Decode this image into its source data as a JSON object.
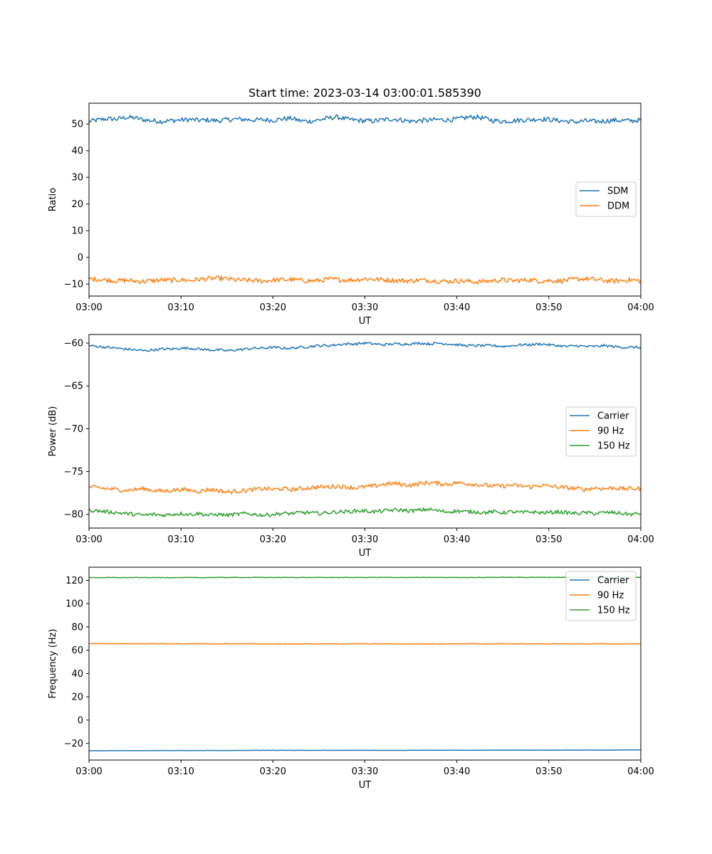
{
  "title": "Start time: 2023-03-14 03:00:01.585390",
  "chart_data": [
    {
      "type": "line",
      "title": "Start time: 2023-03-14 03:00:01.585390",
      "xlabel": "UT",
      "ylabel": "Ratio",
      "x_tick_labels": [
        "03:00",
        "03:10",
        "03:20",
        "03:30",
        "03:40",
        "03:50",
        "04:00"
      ],
      "xlim_minutes": [
        0,
        60
      ],
      "yticks": [
        50,
        40,
        30,
        20,
        10,
        0,
        -10
      ],
      "y_tick_labels": [
        "50",
        "40",
        "30",
        "20",
        "10",
        "0",
        "−10"
      ],
      "ylim": [
        -14.5,
        57.8
      ],
      "legend_position": "center-right",
      "series": [
        {
          "name": "SDM",
          "color": "#1f77b4",
          "mean": 51.5,
          "noise": 0.9,
          "values": [
            51.0,
            51.5,
            52.0,
            51.8,
            52.5,
            52.3,
            51.5,
            51.2,
            51.0,
            51.3,
            51.5,
            51.7,
            51.4,
            51.5,
            51.2,
            51.6,
            51.8,
            51.7,
            51.5,
            51.6,
            51.4,
            51.9,
            52.1,
            51.2,
            51.0,
            51.5,
            52.2,
            52.6,
            51.8,
            51.4,
            51.2,
            51.1,
            51.6,
            51.9,
            51.5,
            51.0,
            51.3,
            51.4,
            51.7,
            51.5,
            51.8,
            52.4,
            52.7,
            52.1,
            51.3,
            51.0,
            51.2,
            51.5,
            51.6,
            51.9,
            51.7,
            51.3,
            51.0,
            50.8,
            51.2,
            50.9,
            51.1,
            51.4,
            51.3,
            51.2,
            51.5
          ]
        },
        {
          "name": "DDM",
          "color": "#ff7f0e",
          "mean": -8.5,
          "noise": 0.9,
          "values": [
            -8.0,
            -8.2,
            -8.5,
            -8.8,
            -8.6,
            -8.9,
            -9.0,
            -8.7,
            -8.5,
            -8.6,
            -8.4,
            -8.7,
            -8.2,
            -8.0,
            -7.8,
            -8.1,
            -8.5,
            -8.6,
            -8.7,
            -8.9,
            -8.5,
            -8.4,
            -8.3,
            -8.6,
            -8.8,
            -8.7,
            -8.2,
            -8.3,
            -8.5,
            -8.4,
            -8.0,
            -8.2,
            -8.4,
            -8.6,
            -8.7,
            -8.8,
            -8.5,
            -8.6,
            -8.9,
            -9.0,
            -8.8,
            -8.9,
            -9.2,
            -9.0,
            -8.7,
            -8.5,
            -8.8,
            -8.6,
            -8.4,
            -8.9,
            -8.7,
            -8.8,
            -8.6,
            -8.2,
            -8.0,
            -8.3,
            -8.7,
            -8.9,
            -8.6,
            -8.5,
            -8.8
          ]
        }
      ]
    },
    {
      "type": "line",
      "title": "",
      "xlabel": "UT",
      "ylabel": "Power (dB)",
      "x_tick_labels": [
        "03:00",
        "03:10",
        "03:20",
        "03:30",
        "03:40",
        "03:50",
        "04:00"
      ],
      "xlim_minutes": [
        0,
        60
      ],
      "yticks": [
        -60,
        -65,
        -70,
        -75,
        -80
      ],
      "y_tick_labels": [
        "−60",
        "−65",
        "−70",
        "−75",
        "−80"
      ],
      "ylim": [
        -81.6,
        -59.0
      ],
      "legend_position": "center-right",
      "series": [
        {
          "name": "Carrier",
          "color": "#1f77b4",
          "mean": -60.4,
          "noise": 0.15,
          "values": [
            -60.3,
            -60.4,
            -60.5,
            -60.6,
            -60.7,
            -60.8,
            -60.9,
            -60.8,
            -60.7,
            -60.7,
            -60.6,
            -60.6,
            -60.7,
            -60.8,
            -60.8,
            -60.9,
            -60.8,
            -60.7,
            -60.6,
            -60.6,
            -60.5,
            -60.6,
            -60.6,
            -60.5,
            -60.4,
            -60.3,
            -60.3,
            -60.2,
            -60.1,
            -60.1,
            -60.0,
            -60.1,
            -60.2,
            -60.1,
            -60.1,
            -60.1,
            -60.0,
            -60.1,
            -60.0,
            -60.1,
            -60.2,
            -60.3,
            -60.3,
            -60.3,
            -60.3,
            -60.4,
            -60.3,
            -60.2,
            -60.2,
            -60.1,
            -60.2,
            -60.3,
            -60.4,
            -60.3,
            -60.4,
            -60.4,
            -60.3,
            -60.4,
            -60.5,
            -60.5,
            -60.5
          ]
        },
        {
          "name": "90 Hz",
          "color": "#ff7f0e",
          "mean": -76.9,
          "noise": 0.25,
          "values": [
            -76.8,
            -76.9,
            -77.0,
            -77.1,
            -77.2,
            -77.1,
            -77.0,
            -77.2,
            -77.3,
            -77.2,
            -77.1,
            -77.2,
            -77.3,
            -77.1,
            -77.2,
            -77.4,
            -77.3,
            -77.2,
            -77.1,
            -77.0,
            -77.1,
            -77.0,
            -77.1,
            -77.0,
            -76.9,
            -76.8,
            -76.8,
            -76.7,
            -76.8,
            -76.9,
            -76.8,
            -76.7,
            -76.5,
            -76.4,
            -76.5,
            -76.6,
            -76.4,
            -76.3,
            -76.4,
            -76.5,
            -76.3,
            -76.4,
            -76.5,
            -76.6,
            -76.7,
            -76.7,
            -76.6,
            -76.7,
            -76.8,
            -76.6,
            -76.7,
            -76.8,
            -76.9,
            -77.0,
            -77.1,
            -76.9,
            -77.0,
            -76.9,
            -77.0,
            -77.0,
            -77.0
          ]
        },
        {
          "name": "150 Hz",
          "color": "#2ca02c",
          "mean": -79.8,
          "noise": 0.22,
          "values": [
            -79.5,
            -79.6,
            -79.7,
            -79.8,
            -79.9,
            -80.0,
            -80.1,
            -80.0,
            -80.1,
            -80.0,
            -79.9,
            -80.0,
            -79.9,
            -80.1,
            -80.0,
            -80.1,
            -80.0,
            -79.9,
            -80.0,
            -80.1,
            -80.0,
            -79.9,
            -79.9,
            -79.8,
            -79.8,
            -79.9,
            -79.8,
            -79.7,
            -79.7,
            -79.6,
            -79.6,
            -79.7,
            -79.6,
            -79.5,
            -79.5,
            -79.6,
            -79.5,
            -79.4,
            -79.6,
            -79.7,
            -79.6,
            -79.7,
            -79.7,
            -79.8,
            -79.7,
            -79.8,
            -79.7,
            -79.8,
            -79.7,
            -79.8,
            -79.8,
            -79.7,
            -79.8,
            -79.9,
            -79.8,
            -79.9,
            -79.8,
            -79.8,
            -79.9,
            -80.0,
            -79.9
          ]
        }
      ]
    },
    {
      "type": "line",
      "title": "",
      "xlabel": "UT",
      "ylabel": "Frequency (Hz)",
      "x_tick_labels": [
        "03:00",
        "03:10",
        "03:20",
        "03:30",
        "03:40",
        "03:50",
        "04:00"
      ],
      "xlim_minutes": [
        0,
        60
      ],
      "yticks": [
        120,
        100,
        80,
        60,
        40,
        20,
        0,
        -20
      ],
      "y_tick_labels": [
        "120",
        "100",
        "80",
        "60",
        "40",
        "20",
        "0",
        "−20"
      ],
      "ylim": [
        -34.3,
        131.3
      ],
      "legend_position": "top-right",
      "series": [
        {
          "name": "Carrier",
          "color": "#1f77b4",
          "mean": -26.0,
          "noise": 0.08,
          "values": [
            -26.3,
            -26.3,
            -26.3,
            -26.2,
            -26.2,
            -26.2,
            -26.2,
            -26.2,
            -26.1,
            -26.1,
            -26.1,
            -26.1,
            -26.1,
            -26.1,
            -26.1,
            -26.1,
            -26.1,
            -26.0,
            -26.0,
            -26.0,
            -26.0,
            -26.0,
            -26.0,
            -26.0,
            -26.0,
            -26.0,
            -26.0,
            -26.0,
            -26.0,
            -26.0,
            -26.0,
            -26.0,
            -26.0,
            -26.0,
            -26.0,
            -25.9,
            -25.9,
            -25.9,
            -25.9,
            -25.9,
            -25.9,
            -25.9,
            -25.9,
            -25.9,
            -25.8,
            -25.8,
            -25.8,
            -25.8,
            -25.8,
            -25.8,
            -25.8,
            -25.8,
            -25.7,
            -25.7,
            -25.7,
            -25.7,
            -25.7,
            -25.7,
            -25.6,
            -25.6,
            -25.6
          ]
        },
        {
          "name": "90 Hz",
          "color": "#ff7f0e",
          "mean": 65.5,
          "noise": 0.2,
          "values": [
            65.6,
            65.6,
            65.6,
            65.6,
            65.6,
            65.6,
            65.6,
            65.6,
            65.6,
            65.5,
            65.5,
            65.5,
            65.5,
            65.5,
            65.5,
            65.5,
            65.5,
            65.5,
            65.5,
            65.5,
            65.5,
            65.5,
            65.5,
            65.5,
            65.5,
            65.5,
            65.5,
            65.5,
            65.5,
            65.5,
            65.5,
            65.5,
            65.5,
            65.5,
            65.5,
            65.5,
            65.5,
            65.5,
            65.5,
            65.5,
            65.5,
            65.5,
            65.5,
            65.5,
            65.5,
            65.5,
            65.5,
            65.5,
            65.5,
            65.5,
            65.5,
            65.5,
            65.5,
            65.5,
            65.5,
            65.5,
            65.5,
            65.5,
            65.5,
            65.5,
            65.5
          ]
        },
        {
          "name": "150 Hz",
          "color": "#2ca02c",
          "mean": 122.5,
          "noise": 0.2,
          "values": [
            122.4,
            122.4,
            122.4,
            122.4,
            122.4,
            122.4,
            122.4,
            122.4,
            122.4,
            122.4,
            122.4,
            122.4,
            122.4,
            122.5,
            122.5,
            122.5,
            122.5,
            122.5,
            122.5,
            122.5,
            122.5,
            122.5,
            122.5,
            122.5,
            122.5,
            122.5,
            122.5,
            122.5,
            122.5,
            122.5,
            122.5,
            122.5,
            122.5,
            122.5,
            122.5,
            122.5,
            122.5,
            122.5,
            122.5,
            122.5,
            122.5,
            122.5,
            122.5,
            122.5,
            122.6,
            122.6,
            122.6,
            122.6,
            122.6,
            122.6,
            122.6,
            122.6,
            122.6,
            122.6,
            122.6,
            122.6,
            122.6,
            122.6,
            122.6,
            122.6,
            122.6
          ]
        }
      ]
    }
  ]
}
